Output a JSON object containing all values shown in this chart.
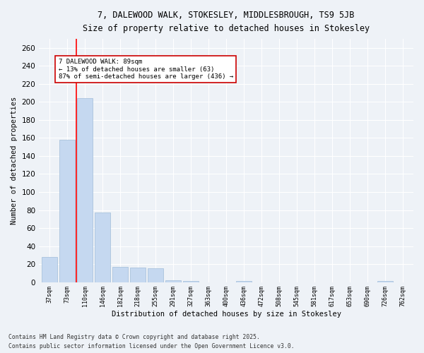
{
  "title_line1": "7, DALEWOOD WALK, STOKESLEY, MIDDLESBROUGH, TS9 5JB",
  "title_line2": "Size of property relative to detached houses in Stokesley",
  "xlabel": "Distribution of detached houses by size in Stokesley",
  "ylabel": "Number of detached properties",
  "categories": [
    "37sqm",
    "73sqm",
    "110sqm",
    "146sqm",
    "182sqm",
    "218sqm",
    "255sqm",
    "291sqm",
    "327sqm",
    "363sqm",
    "400sqm",
    "436sqm",
    "472sqm",
    "508sqm",
    "545sqm",
    "581sqm",
    "617sqm",
    "653sqm",
    "690sqm",
    "726sqm",
    "762sqm"
  ],
  "values": [
    28,
    158,
    204,
    77,
    17,
    16,
    15,
    2,
    1,
    0,
    0,
    1,
    0,
    0,
    0,
    0,
    0,
    0,
    0,
    1,
    0
  ],
  "bar_color": "#c5d8f0",
  "bar_edge_color": "#a0bcd8",
  "red_line_x": 1.5,
  "annotation_text": "7 DALEWOOD WALK: 89sqm\n← 13% of detached houses are smaller (63)\n87% of semi-detached houses are larger (436) →",
  "annotation_box_color": "#ffffff",
  "annotation_box_edge_color": "#cc0000",
  "ylim": [
    0,
    270
  ],
  "yticks": [
    0,
    20,
    40,
    60,
    80,
    100,
    120,
    140,
    160,
    180,
    200,
    220,
    240,
    260
  ],
  "background_color": "#eef2f7",
  "grid_color": "#ffffff",
  "footer_line1": "Contains HM Land Registry data © Crown copyright and database right 2025.",
  "footer_line2": "Contains public sector information licensed under the Open Government Licence v3.0."
}
